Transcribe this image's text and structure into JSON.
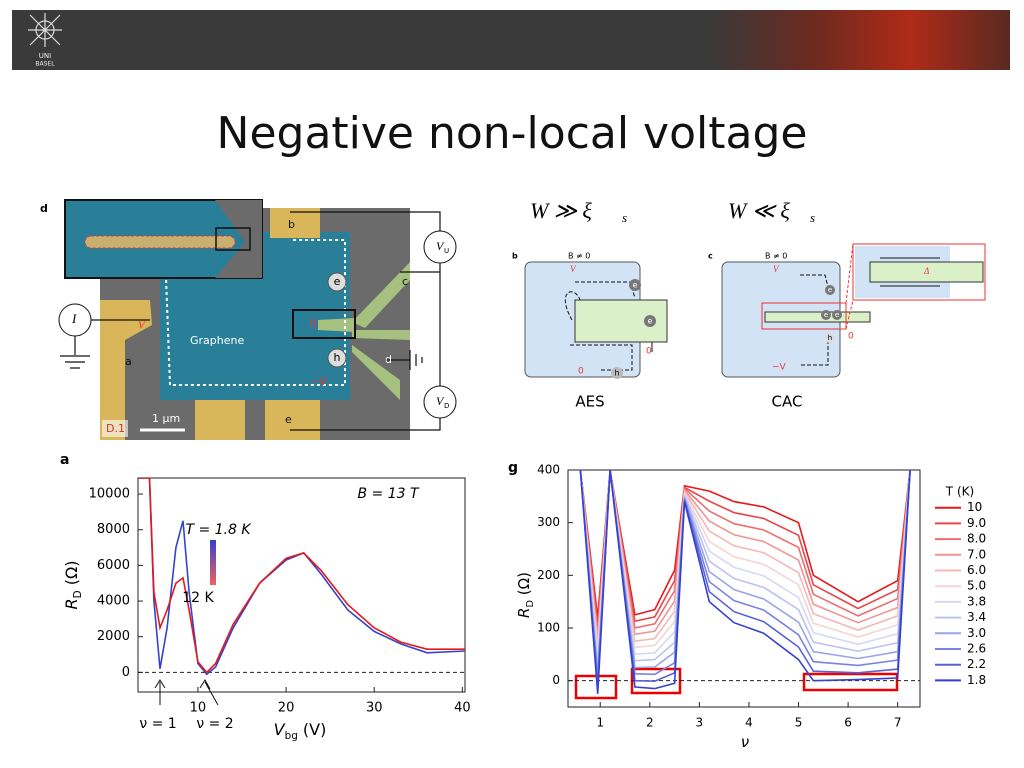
{
  "header": {
    "logo_top": "UNI",
    "logo_bottom": "BASEL"
  },
  "title": "Negative non-local voltage",
  "device": {
    "panel": "d",
    "graphene": "Graphene",
    "scale": "1 µm",
    "sample": "D.1",
    "current": "I",
    "voltage": "V",
    "minus_voltage": "−V",
    "zero": "0",
    "vu": {
      "symbol": "V",
      "subscript": "U"
    },
    "vd": {
      "symbol": "V",
      "subscript": "D"
    },
    "contacts": [
      "a",
      "b",
      "c",
      "d",
      "e"
    ],
    "electron": "e",
    "hole": "h"
  },
  "schematics": {
    "left": {
      "condition": {
        "text": "W ≫ ξ",
        "subscript": "s"
      },
      "panel": "b",
      "field": "B ≠ 0",
      "voltage": "V",
      "zero": "0",
      "electron": "e",
      "hole": "h",
      "caption": "AES"
    },
    "right": {
      "condition": {
        "text": "W ≪ ξ",
        "subscript": "s"
      },
      "panel": "c",
      "field": "B ≠ 0",
      "voltage": "V",
      "minus_voltage": "−V",
      "zero": "0",
      "electron": "e",
      "hole": "h",
      "gap": "Δ",
      "caption": "CAC"
    }
  },
  "chart_data": [
    {
      "type": "line",
      "panel": "a",
      "ylabel": {
        "symbol": "R",
        "subscript": "D",
        "unit": " (Ω)"
      },
      "xlabel": {
        "symbol": "V",
        "subscript": "bg",
        "unit": " (V)"
      },
      "annotations": [
        "B = 13 T",
        "T = 1.8 K",
        "12 K",
        "ν = 1",
        "ν = 2"
      ],
      "x": [
        3.2,
        4.5,
        5.0,
        5.7,
        6.5,
        7.5,
        8.3,
        9,
        10,
        11,
        12,
        14,
        17,
        20,
        22,
        24,
        27,
        30,
        33,
        36,
        40.3
      ],
      "series": [
        {
          "color": "#3442d0",
          "values": [
            10900,
            10900,
            4000,
            200,
            2500,
            7000,
            8500,
            4500,
            500,
            -100,
            300,
            2500,
            5000,
            6300,
            6700,
            5500,
            3500,
            2300,
            1600,
            1100,
            1200
          ]
        },
        {
          "color": "#e31a1c",
          "values": [
            10900,
            10900,
            4500,
            2500,
            3500,
            5000,
            5300,
            3500,
            600,
            0,
            500,
            2700,
            5000,
            6400,
            6700,
            5700,
            3800,
            2500,
            1700,
            1300,
            1300
          ]
        }
      ],
      "reference_line": 0,
      "xlim": [
        3.2,
        40.3
      ],
      "xticks": [
        10,
        20,
        30,
        40
      ],
      "ylim": [
        -1100,
        10900
      ],
      "yticks": [
        0,
        2000,
        4000,
        6000,
        8000,
        10000
      ]
    },
    {
      "type": "line",
      "panel": "g",
      "ylabel": {
        "symbol": "R",
        "subscript": "D",
        "unit": " (Ω)"
      },
      "xlabel": {
        "symbol": "ν",
        "subscript": "",
        "unit": ""
      },
      "legend_title": "T (K)",
      "legend": "right",
      "x": [
        0.6,
        0.95,
        1.2,
        1.7,
        2.1,
        2.5,
        2.7,
        3.2,
        3.7,
        4.3,
        5.0,
        5.3,
        6.2,
        7.0,
        7.25
      ],
      "series": [
        {
          "name": "10",
          "color": "#e31a1c",
          "values": [
            400,
            120,
            400,
            125,
            135,
            210,
            370,
            360,
            340,
            330,
            300,
            200,
            150,
            190,
            400
          ]
        },
        {
          "name": "9.0",
          "color": "#e8464a",
          "values": [
            400,
            107,
            400,
            113,
            121,
            190,
            367,
            341,
            319,
            308,
            276,
            182,
            137,
            173,
            400
          ]
        },
        {
          "name": "8.0",
          "color": "#ec6e6f",
          "values": [
            400,
            94,
            400,
            100,
            108,
            171,
            365,
            322,
            298,
            286,
            253,
            164,
            123,
            156,
            400
          ]
        },
        {
          "name": "7.0",
          "color": "#f09494",
          "values": [
            400,
            80,
            400,
            88,
            94,
            151,
            362,
            303,
            277,
            264,
            229,
            145,
            110,
            139,
            400
          ]
        },
        {
          "name": "6.0",
          "color": "#f4b8b8",
          "values": [
            400,
            67,
            400,
            75,
            80,
            132,
            359,
            284,
            256,
            243,
            205,
            127,
            96,
            123,
            400
          ]
        },
        {
          "name": "5.0",
          "color": "#f5d4d4",
          "values": [
            400,
            54,
            400,
            63,
            67,
            112,
            356,
            264,
            235,
            221,
            182,
            109,
            83,
            106,
            400
          ]
        },
        {
          "name": "3.8",
          "color": "#d4d9f3",
          "values": [
            400,
            41,
            400,
            50,
            53,
            93,
            354,
            246,
            215,
            199,
            158,
            91,
            69,
            89,
            400
          ]
        },
        {
          "name": "3.4",
          "color": "#bcc3ef",
          "values": [
            400,
            28,
            400,
            38,
            40,
            73,
            351,
            227,
            194,
            177,
            135,
            73,
            56,
            72,
            400
          ]
        },
        {
          "name": "3.0",
          "color": "#9aa4e8",
          "values": [
            400,
            15,
            400,
            25,
            26,
            54,
            348,
            207,
            173,
            155,
            111,
            55,
            42,
            55,
            400
          ]
        },
        {
          "name": "2.6",
          "color": "#7884e0",
          "values": [
            400,
            1,
            400,
            13,
            12,
            34,
            345,
            188,
            152,
            134,
            87,
            36,
            29,
            39,
            400
          ]
        },
        {
          "name": "2.2",
          "color": "#5662d8",
          "values": [
            400,
            -12,
            400,
            0,
            -1,
            15,
            343,
            169,
            131,
            112,
            64,
            18,
            15,
            22,
            400
          ]
        },
        {
          "name": "1.8",
          "color": "#3442d0",
          "values": [
            400,
            -25,
            400,
            -12,
            -15,
            -5,
            340,
            150,
            110,
            90,
            40,
            0,
            2,
            5,
            400
          ]
        }
      ],
      "reference_line": 0,
      "xlim": [
        0.35,
        7.45
      ],
      "xticks": [
        1,
        2,
        3,
        4,
        5,
        6,
        7
      ],
      "ylim": [
        -50,
        400
      ],
      "yticks": [
        0,
        100,
        200,
        300,
        400
      ]
    }
  ]
}
